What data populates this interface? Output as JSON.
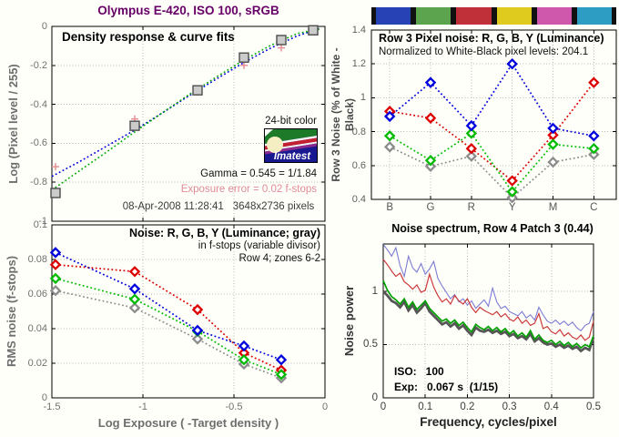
{
  "figure": {
    "title": "Olympus E-420, ISO 100, sRGB",
    "title_color": "#660066"
  },
  "chart_data": [
    {
      "id": "density-response",
      "type": "scatter",
      "title": "Density response & curve fits",
      "ylabel": "Log (Pixel level / 255)",
      "xlim": [
        -1.5,
        0
      ],
      "ylim": [
        -1,
        0
      ],
      "yticks": [
        0,
        -0.2,
        -0.4,
        -0.6,
        -0.8,
        -1
      ],
      "ytick_labels": [
        "0",
        "-0.2",
        "-0.4",
        "-0.6",
        "-0.8",
        "-1"
      ],
      "xgrid": [
        -1,
        -0.5
      ],
      "series": [
        {
          "name": "fit-blue",
          "style": "dotted",
          "color": "#0000dd",
          "x": [
            -1.5,
            -1.35,
            -1.2,
            -1.05,
            -0.9,
            -0.75,
            -0.6,
            -0.45,
            -0.3,
            -0.15,
            -0.02
          ],
          "y": [
            -0.77,
            -0.695,
            -0.615,
            -0.535,
            -0.448,
            -0.358,
            -0.272,
            -0.188,
            -0.112,
            -0.048,
            -0.008
          ]
        },
        {
          "name": "fit-green",
          "style": "dotted",
          "color": "#00aa00",
          "x": [
            -1.5,
            -1.35,
            -1.2,
            -1.05,
            -0.9,
            -0.75,
            -0.6,
            -0.45,
            -0.3,
            -0.15,
            -0.02
          ],
          "y": [
            -0.84,
            -0.742,
            -0.645,
            -0.545,
            -0.448,
            -0.352,
            -0.262,
            -0.175,
            -0.098,
            -0.036,
            -0.012
          ]
        },
        {
          "name": "patch-secondary-plus",
          "marker": "plus",
          "color": "#e59098",
          "x": [
            -1.48,
            -1.045,
            -0.445,
            -0.24
          ],
          "y": [
            -0.72,
            -0.475,
            -0.2,
            -0.11
          ]
        },
        {
          "name": "patch-measured-squares",
          "marker": "square",
          "color": "#4d4d4d",
          "fill": "#cbcbcb",
          "x": [
            -1.48,
            -1.045,
            -0.7,
            -0.445,
            -0.24,
            -0.065
          ],
          "y": [
            -0.855,
            -0.51,
            -0.328,
            -0.16,
            -0.07,
            -0.02
          ]
        }
      ],
      "annotations": {
        "colorbits": "24-bit color",
        "gamma": "Gamma = 0.545 = 1/1.84",
        "exposure_error": "Exposure error = 0.02 f-stops",
        "exposure_error_color": "#e08a98",
        "date": "08-Apr-2008 11:28:41",
        "resolution": "3648x2736 pixels"
      },
      "logo_text": "Imatest"
    },
    {
      "id": "rms-noise",
      "type": "line",
      "title": "Noise: R, G, B, Y (Luminance; gray)",
      "subtitle1": "in f-stops (variable divisor)",
      "subtitle2": "Row 4; zones 6-2",
      "xlabel": "Log Exposure ( -Target density )",
      "ylabel": "RMS noise (f-stops)",
      "xlim": [
        -1.5,
        0
      ],
      "ylim": [
        0,
        0.1
      ],
      "xticks": [
        -1.5,
        -1,
        -0.5,
        0
      ],
      "xtick_labels": [
        "-1.5",
        "-1",
        "-0.5",
        "0"
      ],
      "yticks": [
        0,
        0.02,
        0.04,
        0.06,
        0.08,
        0.1
      ],
      "ytick_labels": [
        "0",
        "0.02",
        "0.04",
        "0.06",
        "0.08",
        "0.1"
      ],
      "xgrid": [
        -1,
        -0.5
      ],
      "x": [
        -1.48,
        -1.045,
        -0.7,
        -0.445,
        -0.24
      ],
      "series": [
        {
          "name": "Y-luminance-gray",
          "color": "#8c8c8c",
          "values": [
            0.062,
            0.052,
            0.034,
            0.0195,
            0.0115
          ]
        },
        {
          "name": "R",
          "color": "#dd0000",
          "values": [
            0.077,
            0.073,
            0.051,
            0.026,
            0.016
          ]
        },
        {
          "name": "G",
          "color": "#00bb00",
          "values": [
            0.069,
            0.057,
            0.0385,
            0.022,
            0.0135
          ]
        },
        {
          "name": "B",
          "color": "#0000dd",
          "values": [
            0.084,
            0.063,
            0.039,
            0.03,
            0.022
          ]
        }
      ]
    },
    {
      "id": "row3-pixel-noise",
      "type": "line",
      "title": "Row 3 Pixel noise: R, G, B, Y (Luminance)",
      "subtitle": "Normalized to White-Black pixel levels: 204.1",
      "ylabel": "Row 3 Noise (% of White - Black)",
      "categories": [
        "B",
        "G",
        "R",
        "Y",
        "M",
        "C"
      ],
      "ylim": [
        0.4,
        1.4
      ],
      "yticks": [
        0.4,
        0.6,
        0.8,
        1,
        1.2,
        1.4
      ],
      "ytick_labels": [
        "0.4",
        "0.6",
        "0.8",
        "1",
        "1.2",
        "1.4"
      ],
      "colorbar_colors": [
        "#2742b4",
        "#5ca44e",
        "#c03038",
        "#decb1e",
        "#cf58ac",
        "#2d9dc4"
      ],
      "series": [
        {
          "name": "Y-luminance-gray",
          "color": "#8c8c8c",
          "values": [
            0.71,
            0.595,
            0.655,
            0.41,
            0.62,
            0.665
          ]
        },
        {
          "name": "R",
          "color": "#dd0000",
          "values": [
            0.92,
            0.88,
            0.7,
            0.51,
            0.78,
            1.09
          ]
        },
        {
          "name": "G",
          "color": "#00bb00",
          "values": [
            0.775,
            0.63,
            0.79,
            0.445,
            0.725,
            0.7
          ]
        },
        {
          "name": "B",
          "color": "#0000dd",
          "values": [
            0.89,
            1.09,
            0.835,
            1.2,
            0.82,
            0.775
          ]
        }
      ]
    },
    {
      "id": "noise-spectrum",
      "type": "line",
      "title": "Noise spectrum, Row 4 Patch 3 (0.44)",
      "xlabel": "Frequency, cycles/pixel",
      "ylabel": "Noise power",
      "xlim": [
        0,
        0.5
      ],
      "ylim": [
        0,
        1.444
      ],
      "xticks": [
        0,
        0.1,
        0.2,
        0.3,
        0.4,
        0.5
      ],
      "xtick_labels": [
        "0",
        "0.1",
        "0.2",
        "0.3",
        "0.4",
        "0.5"
      ],
      "yticks": [
        0,
        0.5,
        1
      ],
      "ytick_labels": [
        "0",
        "0.5",
        "1"
      ],
      "iso_label": "ISO:   100",
      "exp_label": "Exp:   0.067 s  (1/15)",
      "x_start": 0,
      "x_step": 0.01,
      "series": [
        {
          "name": "B",
          "color": "#7b7bd4",
          "values": [
            1.44,
            1.39,
            1.33,
            1.41,
            1.24,
            1.14,
            1.33,
            1.22,
            1.18,
            1.26,
            1.16,
            1.21,
            1.28,
            1.12,
            1.05,
            0.99,
            0.93,
            0.97,
            0.9,
            0.93,
            0.87,
            0.91,
            0.84,
            0.88,
            0.92,
            0.86,
            1.03,
            0.9,
            0.84,
            0.86,
            0.81,
            0.79,
            0.77,
            0.81,
            0.75,
            0.78,
            0.73,
            0.85,
            0.78,
            0.72,
            0.7,
            0.73,
            0.69,
            0.72,
            0.68,
            0.71,
            0.66,
            0.63,
            0.68,
            0.7,
            0.81
          ]
        },
        {
          "name": "R",
          "color": "#cc3a3a",
          "values": [
            1.3,
            1.25,
            1.19,
            1.14,
            1.17,
            1.09,
            1.06,
            1.02,
            1.06,
            0.99,
            1.01,
            1.16,
            1.04,
            0.96,
            0.9,
            0.93,
            0.88,
            0.96,
            0.91,
            0.88,
            0.93,
            0.85,
            0.8,
            0.85,
            0.82,
            0.8,
            0.78,
            0.81,
            0.76,
            0.79,
            0.74,
            0.72,
            0.76,
            0.7,
            0.73,
            0.68,
            0.7,
            0.79,
            0.65,
            0.67,
            0.62,
            0.6,
            0.64,
            0.58,
            0.61,
            0.57,
            0.55,
            0.59,
            0.54,
            0.57,
            0.72
          ]
        },
        {
          "name": "Y-luminance-gray",
          "color": "#565656",
          "values": [
            1.0,
            0.96,
            0.91,
            0.89,
            0.85,
            0.9,
            0.82,
            0.87,
            0.8,
            0.84,
            0.89,
            0.81,
            0.77,
            0.73,
            0.69,
            0.71,
            0.67,
            0.7,
            0.65,
            0.68,
            0.63,
            0.59,
            0.66,
            0.63,
            0.62,
            0.64,
            0.61,
            0.63,
            0.6,
            0.62,
            0.58,
            0.6,
            0.56,
            0.58,
            0.55,
            0.6,
            0.53,
            0.56,
            0.52,
            0.5,
            0.51,
            0.48,
            0.5,
            0.47,
            0.49,
            0.46,
            0.48,
            0.44,
            0.47,
            0.45,
            0.57
          ]
        },
        {
          "name": "G",
          "color": "#00a000",
          "values": [
            1.1,
            1.01,
            0.95,
            0.92,
            0.88,
            0.93,
            0.85,
            0.9,
            0.83,
            0.87,
            0.91,
            0.84,
            0.8,
            0.76,
            0.72,
            0.74,
            0.7,
            0.73,
            0.68,
            0.71,
            0.66,
            0.62,
            0.69,
            0.66,
            0.64,
            0.67,
            0.63,
            0.66,
            0.62,
            0.65,
            0.6,
            0.63,
            0.58,
            0.61,
            0.57,
            0.63,
            0.55,
            0.59,
            0.54,
            0.52,
            0.54,
            0.5,
            0.53,
            0.49,
            0.52,
            0.48,
            0.51,
            0.47,
            0.5,
            0.48,
            0.58
          ]
        }
      ]
    }
  ]
}
